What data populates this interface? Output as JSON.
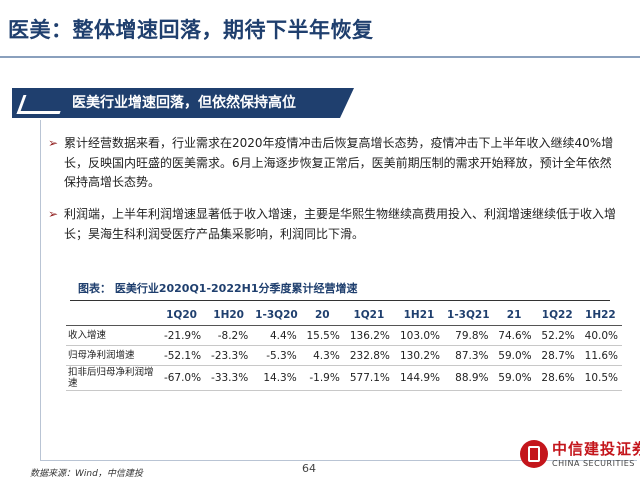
{
  "slide_title": "医美：整体增速回落，期待下半年恢复",
  "section_banner": "医美行业增速回落，但依然保持高位",
  "bullets": [
    "累计经营数据来看，行业需求在2020年疫情冲击后恢复高增长态势，疫情冲击下上半年收入继续40%增长，反映国内旺盛的医美需求。6月上海逐步恢复正常后，医美前期压制的需求开始释放，预计全年依然保持高增长态势。",
    "利润端，上半年利润增速显著低于收入增速，主要是华熙生物继续高费用投入、利润增速继续低于收入增长；昊海生科利润受医疗产品集采影响，利润同比下滑。"
  ],
  "table": {
    "title": "图表：  医美行业2020Q1-2022H1分季度累计经营增速",
    "headers": [
      "",
      "1Q20",
      "1H20",
      "1-3Q20",
      "20",
      "1Q21",
      "1H21",
      "1-3Q21",
      "21",
      "1Q22",
      "1H22"
    ],
    "rows": [
      {
        "label": "收入增速",
        "values": [
          "-21.9%",
          "-8.2%",
          "4.4%",
          "15.5%",
          "136.2%",
          "103.0%",
          "79.8%",
          "74.6%",
          "52.2%",
          "40.0%"
        ]
      },
      {
        "label": "归母净利润增速",
        "values": [
          "-52.1%",
          "-23.3%",
          "-5.3%",
          "4.3%",
          "232.8%",
          "130.2%",
          "87.3%",
          "59.0%",
          "28.7%",
          "11.6%"
        ]
      },
      {
        "label": "扣非后归母净利润增速",
        "values": [
          "-67.0%",
          "-33.3%",
          "14.3%",
          "-1.9%",
          "577.1%",
          "144.9%",
          "88.9%",
          "59.0%",
          "28.6%",
          "10.5%"
        ]
      }
    ]
  },
  "footer": {
    "source": "数据来源：Wind，中信建投",
    "page_number": "64"
  },
  "logo": {
    "name_cn": "中信建投证券",
    "name_en": "CHINA SECURITIES",
    "icon": "seal-logo-icon",
    "color": "#c4161c"
  },
  "colors": {
    "primary": "#1f3f6e",
    "accent": "#8f1d1d"
  }
}
